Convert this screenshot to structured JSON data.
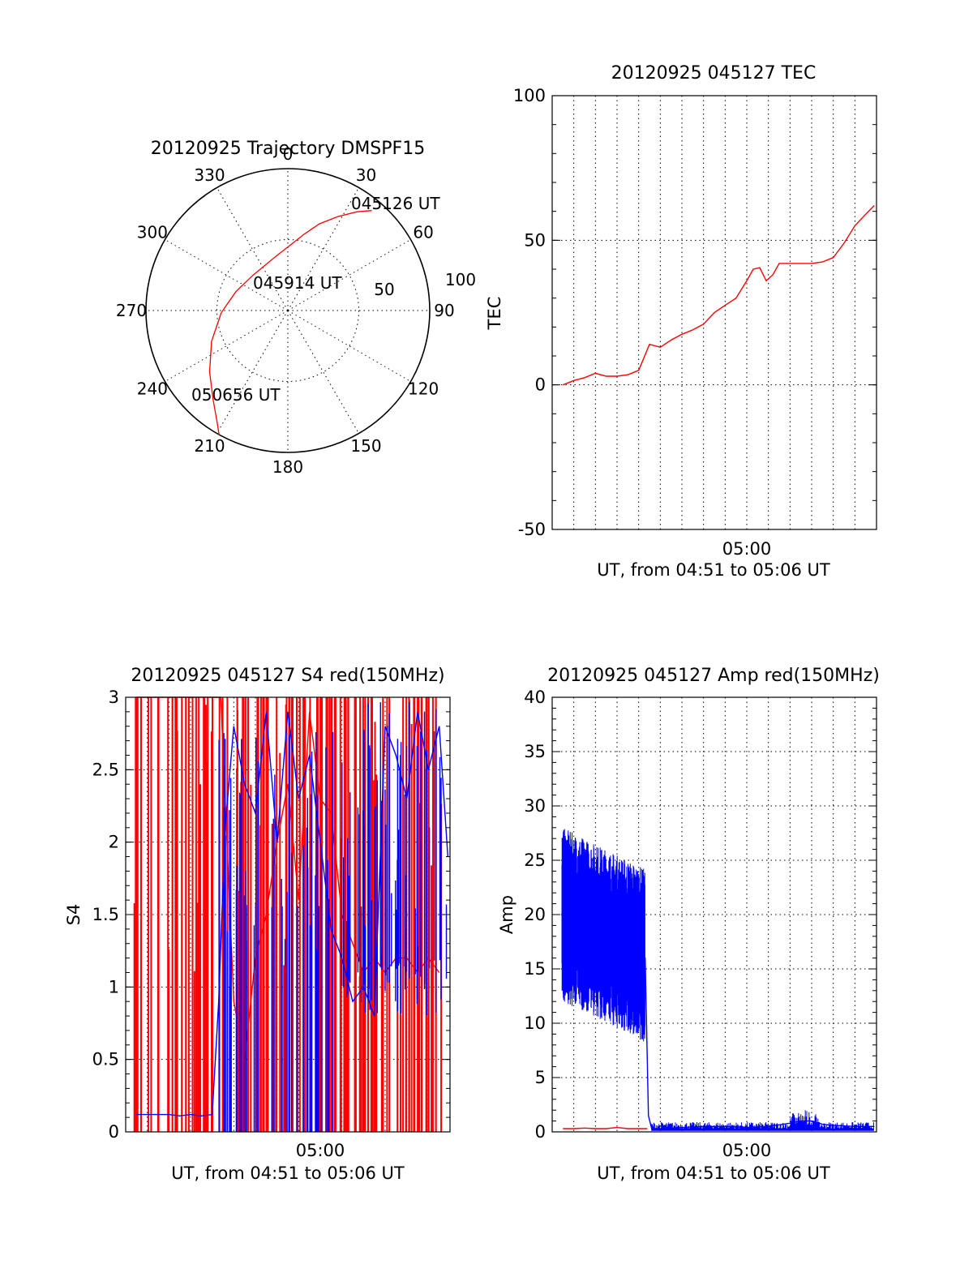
{
  "figure": {
    "xlabel_time_axis": "UT, from 04:51 to 05:06 UT",
    "x_tick_label": "05:00"
  },
  "colors": {
    "red": "#ff0000",
    "blue": "#0000ff",
    "axis": "#000000",
    "background": "#ffffff"
  },
  "chart_data": [
    {
      "id": "trajectory",
      "type": "scatter",
      "subtype": "polar-skyplot",
      "title": "20120925 Trajectory DMSPF15",
      "azimuth_labels": [
        "0",
        "30",
        "60",
        "90",
        "120",
        "150",
        "180",
        "210",
        "240",
        "270",
        "300",
        "330"
      ],
      "radial_labels": [
        "50",
        "100"
      ],
      "time_labels": [
        "045126 UT",
        "045914 UT",
        "050656 UT"
      ],
      "track": {
        "color": "#ff0000",
        "azimuth_deg": [
          40,
          35,
          28,
          20,
          12,
          2,
          -10,
          -25,
          -45,
          -70,
          -92,
          -112,
          -128,
          -140,
          -147,
          -151
        ],
        "zenith": [
          92,
          85,
          75,
          65,
          55,
          46,
          40,
          36,
          35,
          39,
          47,
          58,
          70,
          82,
          92,
          100
        ]
      }
    },
    {
      "id": "tec",
      "type": "line",
      "title": "20120925 045127 TEC",
      "ylabel": "TEC",
      "xlabel": "UT, from 04:51 to 05:06 UT",
      "ylim": [
        -50,
        100
      ],
      "yticks": [
        "100",
        "50",
        "0",
        "-50"
      ],
      "xlim_min": [
        0,
        15
      ],
      "grid": true,
      "series": [
        {
          "color": "#ff0000",
          "x_min": [
            0.5,
            1.0,
            1.5,
            2.0,
            2.5,
            3.0,
            3.5,
            4.0,
            4.5,
            5.0,
            5.5,
            6.0,
            6.5,
            7.0,
            7.5,
            8.0,
            8.5,
            9.0,
            9.3,
            9.6,
            9.9,
            10.2,
            10.5,
            11.0,
            11.5,
            12.0,
            12.5,
            13.0,
            13.5,
            14.0,
            14.5,
            14.9
          ],
          "y": [
            0,
            1.5,
            2.5,
            4,
            3,
            3,
            3.5,
            5,
            14,
            13,
            15.5,
            17.5,
            19,
            21,
            25,
            27.5,
            30,
            36,
            40,
            40.5,
            36,
            38,
            42,
            42,
            42,
            42,
            42.5,
            44,
            49,
            55,
            59,
            62
          ]
        }
      ]
    },
    {
      "id": "s4",
      "type": "line",
      "title": "20120925 045127 S4 red(150MHz)",
      "ylabel": "S4",
      "xlabel": "UT, from 04:51 to 05:06 UT",
      "ylim": [
        0,
        3
      ],
      "yticks": [
        "3",
        "2.5",
        "2",
        "1.5",
        "1",
        "0.5",
        "0"
      ],
      "xlim_min": [
        0,
        15
      ],
      "grid": true,
      "series": [
        {
          "color": "#ff0000",
          "x_min": [
            0.5,
            1.5,
            2.5,
            3.5,
            4.4,
            5.0,
            5.5,
            6.0,
            6.5,
            7.0,
            7.5,
            8.0,
            8.5,
            9.0,
            9.5,
            10.0,
            10.5,
            11.0,
            11.5,
            12.0,
            12.5,
            13.0,
            13.5,
            14.0,
            14.5
          ],
          "y": [
            3,
            3,
            3,
            3,
            3,
            0.9,
            0.5,
            1.2,
            1.5,
            2.0,
            2.4,
            1.6,
            2.9,
            2.3,
            2.2,
            1.5,
            1.3,
            1.1,
            1.2,
            1.1,
            1.2,
            1.2,
            1.1,
            1.2,
            1.1
          ]
        },
        {
          "color": "#0000ff",
          "x_min": [
            0.5,
            1.0,
            1.5,
            2.0,
            2.5,
            3.0,
            3.5,
            4.0,
            4.3,
            4.6,
            5.0,
            5.5,
            6.0,
            6.5,
            7.0,
            7.5,
            8.0,
            8.5,
            9.0,
            9.5,
            10.0,
            10.5,
            11.0,
            11.5,
            12.0,
            12.5,
            13.0,
            13.5,
            14.0,
            14.5,
            14.9
          ],
          "y": [
            0.12,
            0.12,
            0.12,
            0.12,
            0.11,
            0.12,
            0.11,
            0.12,
            0.9,
            2.1,
            2.8,
            2.4,
            2.2,
            2.9,
            2.0,
            2.9,
            2.3,
            2.6,
            2.0,
            1.4,
            1.2,
            0.9,
            1.0,
            0.8,
            2.8,
            2.6,
            2.3,
            2.9,
            2.5,
            2.8,
            1.9
          ]
        }
      ]
    },
    {
      "id": "amp",
      "type": "line",
      "title": "20120925 045127 Amp red(150MHz)",
      "ylabel": "Amp",
      "xlabel": "UT, from 04:51 to 05:06 UT",
      "ylim": [
        0,
        40
      ],
      "yticks": [
        "40",
        "35",
        "30",
        "25",
        "20",
        "15",
        "10",
        "5",
        "0"
      ],
      "xlim_min": [
        0,
        15
      ],
      "grid": true,
      "series": [
        {
          "color": "#ff0000",
          "x_min": [
            0.5,
            1.0,
            1.5,
            2.0,
            2.5,
            3.0,
            3.5,
            4.0,
            4.4
          ],
          "y": [
            0.3,
            0.3,
            0.35,
            0.3,
            0.3,
            0.4,
            0.3,
            0.3,
            0.3
          ]
        },
        {
          "color": "#0000ff",
          "x_min": [
            0.5,
            1.0,
            1.5,
            2.0,
            2.5,
            3.0,
            3.5,
            4.0,
            4.3,
            4.45,
            4.6,
            5.0,
            6.0,
            7.0,
            8.0,
            9.0,
            10.0,
            11.0,
            11.5,
            12.0,
            12.5,
            13.0,
            14.0,
            14.9
          ],
          "y": [
            20,
            20,
            19,
            18.5,
            18,
            17.5,
            17,
            16.5,
            16,
            1.5,
            0.3,
            0.3,
            0.4,
            0.5,
            0.5,
            0.4,
            0.5,
            0.8,
            1.0,
            1.0,
            0.7,
            0.6,
            0.5,
            0.5
          ]
        }
      ]
    }
  ]
}
